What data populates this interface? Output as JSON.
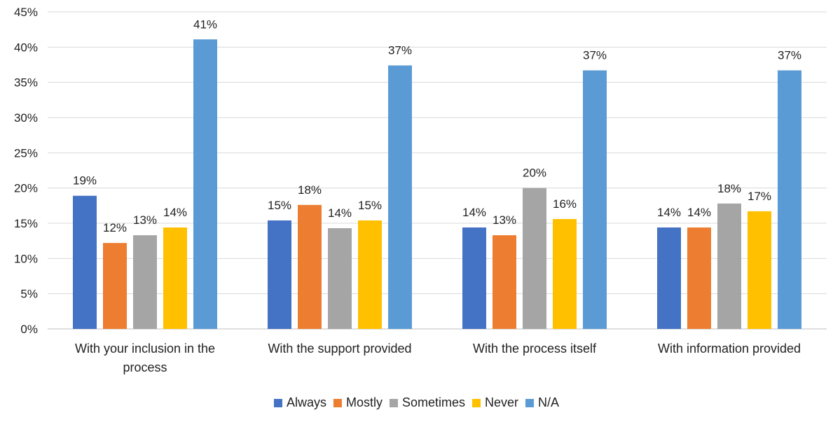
{
  "chart_data": {
    "type": "bar",
    "title": "",
    "xlabel": "",
    "ylabel": "",
    "categories": [
      [
        "With your inclusion in the",
        "process"
      ],
      [
        "With the support provided"
      ],
      [
        "With the process itself"
      ],
      [
        "With information provided"
      ]
    ],
    "ylim": [
      0,
      45
    ],
    "yticks": [
      0,
      5,
      10,
      15,
      20,
      25,
      30,
      35,
      40,
      45
    ],
    "tick_suffix": "%",
    "grid": true,
    "legend_position": "bottom",
    "series": [
      {
        "name": "Always",
        "color": "#4472C4",
        "values": [
          18.9,
          15.4,
          14.4,
          14.4
        ],
        "labels": [
          "19%",
          "15%",
          "14%",
          "14%"
        ]
      },
      {
        "name": "Mostly",
        "color": "#ED7D31",
        "values": [
          12.2,
          17.6,
          13.3,
          14.4
        ],
        "labels": [
          "12%",
          "18%",
          "13%",
          "14%"
        ]
      },
      {
        "name": "Sometimes",
        "color": "#A5A5A5",
        "values": [
          13.3,
          14.3,
          20.0,
          17.8
        ],
        "labels": [
          "13%",
          "14%",
          "20%",
          "18%"
        ]
      },
      {
        "name": "Never",
        "color": "#FFC000",
        "values": [
          14.4,
          15.4,
          15.6,
          16.7
        ],
        "labels": [
          "14%",
          "15%",
          "16%",
          "17%"
        ]
      },
      {
        "name": "N/A",
        "color": "#5B9BD5",
        "values": [
          41.1,
          37.4,
          36.7,
          36.7
        ],
        "labels": [
          "41%",
          "37%",
          "37%",
          "37%"
        ]
      }
    ]
  }
}
